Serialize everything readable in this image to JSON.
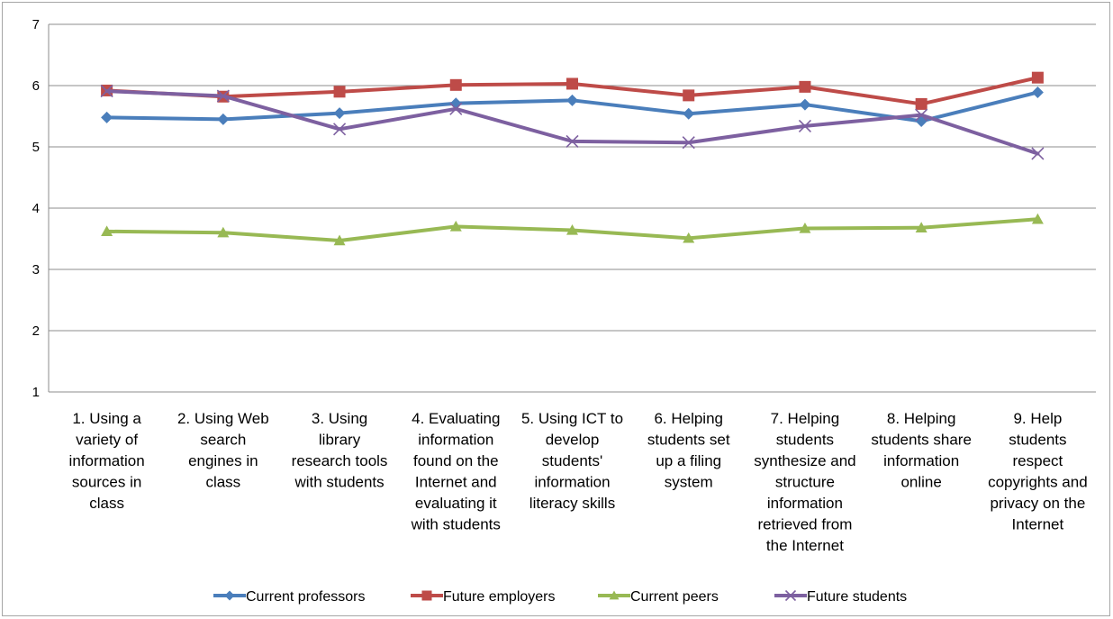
{
  "chart_data": {
    "type": "line",
    "title": "",
    "xlabel": "",
    "ylabel": "",
    "ylim": [
      1,
      7
    ],
    "yticks": [
      "1",
      "2",
      "3",
      "4",
      "5",
      "6",
      "7"
    ],
    "grid": true,
    "legend_position": "bottom",
    "categories": [
      "1. Using a variety of information sources in class",
      "2. Using Web search engines in class",
      "3. Using library research tools with students",
      "4. Evaluating information found on the Internet and evaluating it with students",
      "5. Using ICT to develop students' information literacy skills",
      "6. Helping students set up a filing system",
      "7. Helping students synthesize and structure information retrieved from the Internet",
      "8. Helping students share information online",
      "9. Help students respect copyrights and privacy on the Internet"
    ],
    "category_lines": [
      [
        "1. Using a",
        "variety of",
        "information",
        "sources in",
        "class"
      ],
      [
        "2. Using Web",
        "search",
        "engines in",
        "class"
      ],
      [
        "3. Using",
        "library",
        "research tools",
        "with students"
      ],
      [
        "4. Evaluating",
        "information",
        "found on the",
        "Internet and",
        "evaluating it",
        "with students"
      ],
      [
        "5. Using ICT to",
        "develop",
        "students'",
        "information",
        "literacy skills"
      ],
      [
        "6. Helping",
        "students set",
        "up a filing",
        "system"
      ],
      [
        "7. Helping",
        "students",
        "synthesize and",
        "structure",
        "information",
        "retrieved from",
        "the Internet"
      ],
      [
        "8. Helping",
        "students share",
        "information",
        "online"
      ],
      [
        "9. Help",
        "students",
        "respect",
        "copyrights and",
        "privacy on the",
        "Internet"
      ]
    ],
    "series": [
      {
        "name": "Current professors",
        "color": "#4a7ebb",
        "marker": "diamond",
        "values": [
          5.48,
          5.45,
          5.55,
          5.71,
          5.76,
          5.54,
          5.69,
          5.42,
          5.89
        ]
      },
      {
        "name": "Future employers",
        "color": "#be4b48",
        "marker": "square",
        "values": [
          5.92,
          5.82,
          5.9,
          6.01,
          6.03,
          5.84,
          5.98,
          5.7,
          6.13
        ]
      },
      {
        "name": "Current peers",
        "color": "#98b954",
        "marker": "triangle",
        "values": [
          3.62,
          3.6,
          3.47,
          3.7,
          3.64,
          3.51,
          3.67,
          3.68,
          3.82
        ]
      },
      {
        "name": "Future students",
        "color": "#7d60a0",
        "marker": "x",
        "values": [
          5.91,
          5.83,
          5.29,
          5.62,
          5.09,
          5.07,
          5.34,
          5.52,
          4.89
        ]
      }
    ]
  }
}
